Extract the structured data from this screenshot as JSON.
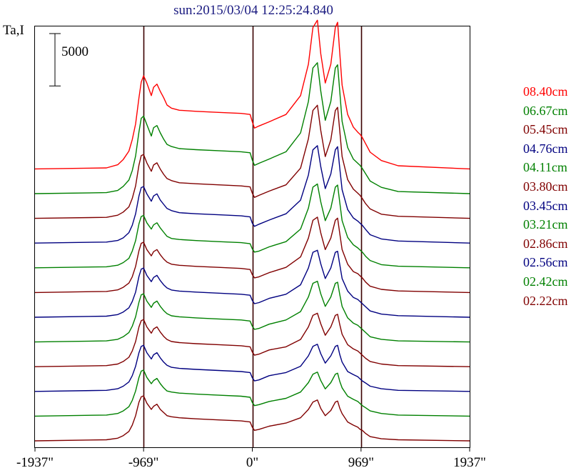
{
  "chart_data": {
    "type": "line",
    "title": "sun:2015/03/04 12:25:24.840",
    "ylabel": "Ta,I",
    "scale_bar_label": "5000",
    "scale_bar_value": 5000,
    "xlim": [
      -1937,
      1937
    ],
    "x_ticks": [
      {
        "value": -1937,
        "label": "-1937\""
      },
      {
        "value": -969,
        "label": "-969\""
      },
      {
        "value": 0,
        "label": "0\""
      },
      {
        "value": 969,
        "label": "969\""
      },
      {
        "value": 1937,
        "label": "1937\""
      }
    ],
    "vertical_lines": [
      -969,
      0,
      969
    ],
    "profile_x": [
      -1937,
      -1300,
      -1200,
      -1150,
      -1100,
      -1070,
      -1040,
      -1010,
      -990,
      -969,
      -940,
      -900,
      -880,
      -850,
      -820,
      -790,
      -760,
      -720,
      -650,
      -500,
      -300,
      -100,
      -20,
      0,
      20,
      60,
      150,
      300,
      430,
      500,
      540,
      580,
      610,
      650,
      700,
      740,
      760,
      780,
      800,
      850,
      900,
      940,
      960,
      980,
      1010,
      1050,
      1150,
      1300,
      1937
    ],
    "series": [
      {
        "name": "08.40cm",
        "color": "#ff0000",
        "baseline": 0,
        "values": [
          0,
          100,
          400,
          900,
          1700,
          2800,
          4300,
          6800,
          8300,
          8900,
          8200,
          7000,
          7800,
          8100,
          7400,
          6800,
          6100,
          5800,
          5600,
          5500,
          5400,
          5300,
          5200,
          4500,
          3900,
          4100,
          4500,
          5200,
          7000,
          10000,
          13500,
          14200,
          11000,
          8200,
          10000,
          13500,
          14000,
          11000,
          8000,
          5200,
          4000,
          3500,
          3300,
          3000,
          2400,
          1600,
          800,
          300,
          0
        ]
      },
      {
        "name": "06.67cm",
        "color": "#008000",
        "baseline": 2360,
        "values": [
          0,
          100,
          300,
          700,
          1300,
          2200,
          3600,
          5900,
          7200,
          7400,
          6600,
          5500,
          6300,
          6500,
          5800,
          5200,
          4700,
          4500,
          4300,
          4200,
          4100,
          4000,
          3900,
          3200,
          2700,
          2900,
          3300,
          4000,
          5800,
          8800,
          12000,
          12500,
          9800,
          7000,
          8800,
          12000,
          12300,
          9700,
          6900,
          4400,
          3300,
          2900,
          2700,
          2400,
          1900,
          1200,
          600,
          200,
          0
        ]
      },
      {
        "name": "05.45cm",
        "color": "#800000",
        "baseline": 4720,
        "values": [
          0,
          100,
          300,
          600,
          1100,
          1900,
          3100,
          5100,
          6000,
          6100,
          5300,
          4500,
          5100,
          5300,
          4700,
          4200,
          3800,
          3600,
          3400,
          3300,
          3200,
          3100,
          3000,
          2400,
          2000,
          2200,
          2600,
          3200,
          4800,
          7600,
          10300,
          10800,
          8400,
          5900,
          7500,
          10300,
          10600,
          8300,
          5900,
          3700,
          2800,
          2400,
          2200,
          1900,
          1400,
          900,
          400,
          200,
          0
        ]
      },
      {
        "name": "04.76cm",
        "color": "#000080",
        "baseline": 7080,
        "values": [
          0,
          100,
          250,
          500,
          1000,
          1700,
          2800,
          4500,
          5300,
          5400,
          4700,
          4000,
          4500,
          4700,
          4100,
          3700,
          3300,
          3100,
          2900,
          2800,
          2700,
          2600,
          2500,
          1900,
          1600,
          1800,
          2200,
          2800,
          4100,
          6500,
          8900,
          9300,
          7300,
          5200,
          6600,
          8900,
          9200,
          7100,
          5100,
          3200,
          2400,
          2100,
          1900,
          1700,
          1300,
          800,
          400,
          200,
          0
        ]
      },
      {
        "name": "04.11cm",
        "color": "#008000",
        "baseline": 9440,
        "values": [
          0,
          100,
          250,
          500,
          900,
          1600,
          2600,
          4200,
          4900,
          5000,
          4300,
          3700,
          4100,
          4300,
          3800,
          3400,
          3000,
          2800,
          2700,
          2600,
          2500,
          2400,
          2300,
          1800,
          1500,
          1600,
          2000,
          2500,
          3700,
          5700,
          7700,
          8000,
          6300,
          4500,
          5700,
          7700,
          7900,
          6200,
          4500,
          2900,
          2200,
          1900,
          1700,
          1500,
          1100,
          700,
          300,
          150,
          0
        ]
      },
      {
        "name": "03.80cm",
        "color": "#800000",
        "baseline": 11800,
        "values": [
          0,
          100,
          250,
          500,
          900,
          1500,
          2500,
          4000,
          4700,
          4800,
          4100,
          3500,
          3900,
          4100,
          3600,
          3200,
          2900,
          2700,
          2600,
          2500,
          2400,
          2300,
          2200,
          1700,
          1400,
          1500,
          1900,
          2400,
          3400,
          5200,
          6900,
          7200,
          5700,
          4100,
          5200,
          6900,
          7100,
          5600,
          4100,
          2700,
          2000,
          1800,
          1600,
          1400,
          1000,
          600,
          300,
          150,
          0
        ]
      },
      {
        "name": "03.45cm",
        "color": "#000080",
        "baseline": 14160,
        "values": [
          0,
          100,
          250,
          500,
          900,
          1500,
          2400,
          3900,
          4600,
          4700,
          4000,
          3400,
          3800,
          4000,
          3500,
          3100,
          2800,
          2600,
          2500,
          2400,
          2300,
          2200,
          2100,
          1600,
          1300,
          1400,
          1800,
          2200,
          3100,
          4700,
          6200,
          6400,
          5100,
          3700,
          4700,
          6200,
          6300,
          5000,
          3700,
          2500,
          1900,
          1700,
          1500,
          1300,
          1000,
          600,
          300,
          150,
          0
        ]
      },
      {
        "name": "03.21cm",
        "color": "#008000",
        "baseline": 16520,
        "values": [
          0,
          100,
          250,
          500,
          900,
          1500,
          2400,
          3800,
          4500,
          4600,
          3900,
          3300,
          3700,
          3900,
          3400,
          3000,
          2700,
          2500,
          2400,
          2300,
          2200,
          2100,
          2000,
          1500,
          1200,
          1300,
          1700,
          2100,
          2900,
          4300,
          5600,
          5800,
          4600,
          3400,
          4300,
          5600,
          5700,
          4500,
          3400,
          2300,
          1800,
          1600,
          1400,
          1200,
          900,
          500,
          250,
          100,
          0
        ]
      },
      {
        "name": "02.86cm",
        "color": "#800000",
        "baseline": 18880,
        "values": [
          0,
          100,
          250,
          500,
          900,
          1500,
          2400,
          3800,
          4400,
          4500,
          3800,
          3200,
          3600,
          3800,
          3300,
          2900,
          2600,
          2400,
          2300,
          2200,
          2100,
          2000,
          1900,
          1400,
          1100,
          1200,
          1600,
          1900,
          2600,
          3800,
          4900,
          5100,
          4100,
          3000,
          3800,
          4900,
          5000,
          4000,
          3100,
          2100,
          1700,
          1500,
          1300,
          1100,
          800,
          500,
          250,
          100,
          0
        ]
      },
      {
        "name": "02.56cm",
        "color": "#000080",
        "baseline": 21240,
        "values": [
          0,
          100,
          250,
          500,
          900,
          1500,
          2400,
          3700,
          4300,
          4400,
          3700,
          3100,
          3500,
          3700,
          3200,
          2800,
          2500,
          2300,
          2200,
          2100,
          2000,
          1900,
          1800,
          1300,
          1000,
          1100,
          1500,
          1800,
          2400,
          3400,
          4300,
          4500,
          3600,
          2700,
          3400,
          4300,
          4400,
          3500,
          2800,
          1900,
          1600,
          1400,
          1200,
          1000,
          800,
          500,
          250,
          100,
          0
        ]
      },
      {
        "name": "02.42cm",
        "color": "#008000",
        "baseline": 23600,
        "values": [
          0,
          100,
          250,
          500,
          900,
          1500,
          2400,
          3700,
          4300,
          4400,
          3700,
          3100,
          3400,
          3600,
          3100,
          2700,
          2400,
          2300,
          2200,
          2100,
          2000,
          1900,
          1800,
          1300,
          1000,
          1100,
          1400,
          1700,
          2300,
          3200,
          4000,
          4200,
          3400,
          2600,
          3200,
          4000,
          4100,
          3300,
          2700,
          1900,
          1600,
          1400,
          1200,
          1000,
          800,
          500,
          250,
          100,
          0
        ]
      },
      {
        "name": "02.22cm",
        "color": "#800000",
        "baseline": 25960,
        "values": [
          0,
          100,
          250,
          500,
          900,
          1500,
          2400,
          3700,
          4200,
          4300,
          3600,
          3000,
          3300,
          3500,
          3000,
          2700,
          2400,
          2300,
          2200,
          2100,
          2000,
          1900,
          1800,
          1300,
          1000,
          1100,
          1400,
          1700,
          2200,
          3000,
          3700,
          3900,
          3100,
          2400,
          2900,
          3700,
          3800,
          3100,
          2600,
          1800,
          1500,
          1300,
          1100,
          1000,
          700,
          400,
          200,
          100,
          0
        ]
      }
    ]
  }
}
